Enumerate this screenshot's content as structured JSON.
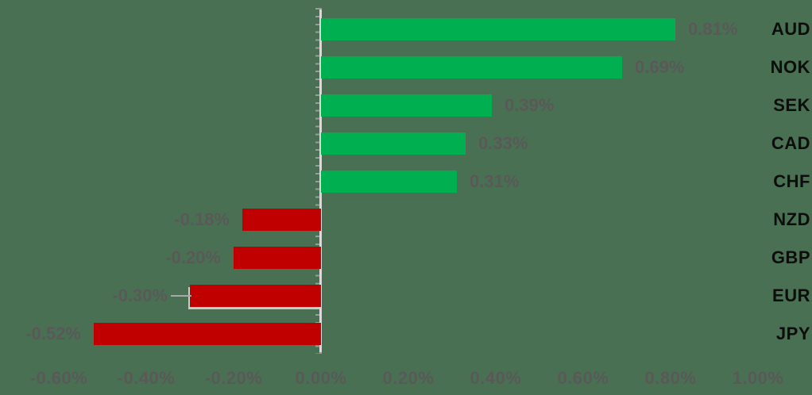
{
  "chart_data": {
    "type": "bar",
    "orientation": "horizontal",
    "title": "",
    "xlabel": "",
    "ylabel": "",
    "xlim": [
      -0.6,
      1.0
    ],
    "grid": false,
    "categories": [
      "AUD",
      "NOK",
      "SEK",
      "CAD",
      "CHF",
      "NZD",
      "GBP",
      "EUR",
      "JPY"
    ],
    "values": [
      0.81,
      0.69,
      0.39,
      0.33,
      0.31,
      -0.18,
      -0.2,
      -0.3,
      -0.52
    ],
    "items": [
      {
        "code": "AUD",
        "value": 0.81,
        "label": "0.81%"
      },
      {
        "code": "NOK",
        "value": 0.69,
        "label": "0.69%"
      },
      {
        "code": "SEK",
        "value": 0.39,
        "label": "0.39%"
      },
      {
        "code": "CAD",
        "value": 0.33,
        "label": "0.33%"
      },
      {
        "code": "CHF",
        "value": 0.31,
        "label": "0.31%"
      },
      {
        "code": "NZD",
        "value": -0.18,
        "label": "-0.18%"
      },
      {
        "code": "GBP",
        "value": -0.2,
        "label": "-0.20%"
      },
      {
        "code": "EUR",
        "value": -0.3,
        "label": "-0.30%",
        "leader_line": true
      },
      {
        "code": "JPY",
        "value": -0.52,
        "label": "-0.52%"
      }
    ],
    "x_ticks": [
      {
        "label": "-0.60%",
        "value": -0.6
      },
      {
        "label": "-0.40%",
        "value": -0.4
      },
      {
        "label": "-0.20%",
        "value": -0.2
      },
      {
        "label": "0.00%",
        "value": 0.0
      },
      {
        "label": "0.20%",
        "value": 0.2
      },
      {
        "label": "0.40%",
        "value": 0.4
      },
      {
        "label": "0.60%",
        "value": 0.6
      },
      {
        "label": "0.80%",
        "value": 0.8
      },
      {
        "label": "1.00%",
        "value": 1.0
      }
    ],
    "colors": {
      "positive_bar": "#00b050",
      "negative_bar": "#c00000",
      "data_label": "#595959",
      "axis_tick_label": "#595959",
      "category_label": "#0d0d0d",
      "axis_line": "#d9d9d9",
      "axis_tick_mark": "#9b9b9b",
      "leader_line": "#a8a8a8",
      "background": "#4a7053"
    }
  }
}
